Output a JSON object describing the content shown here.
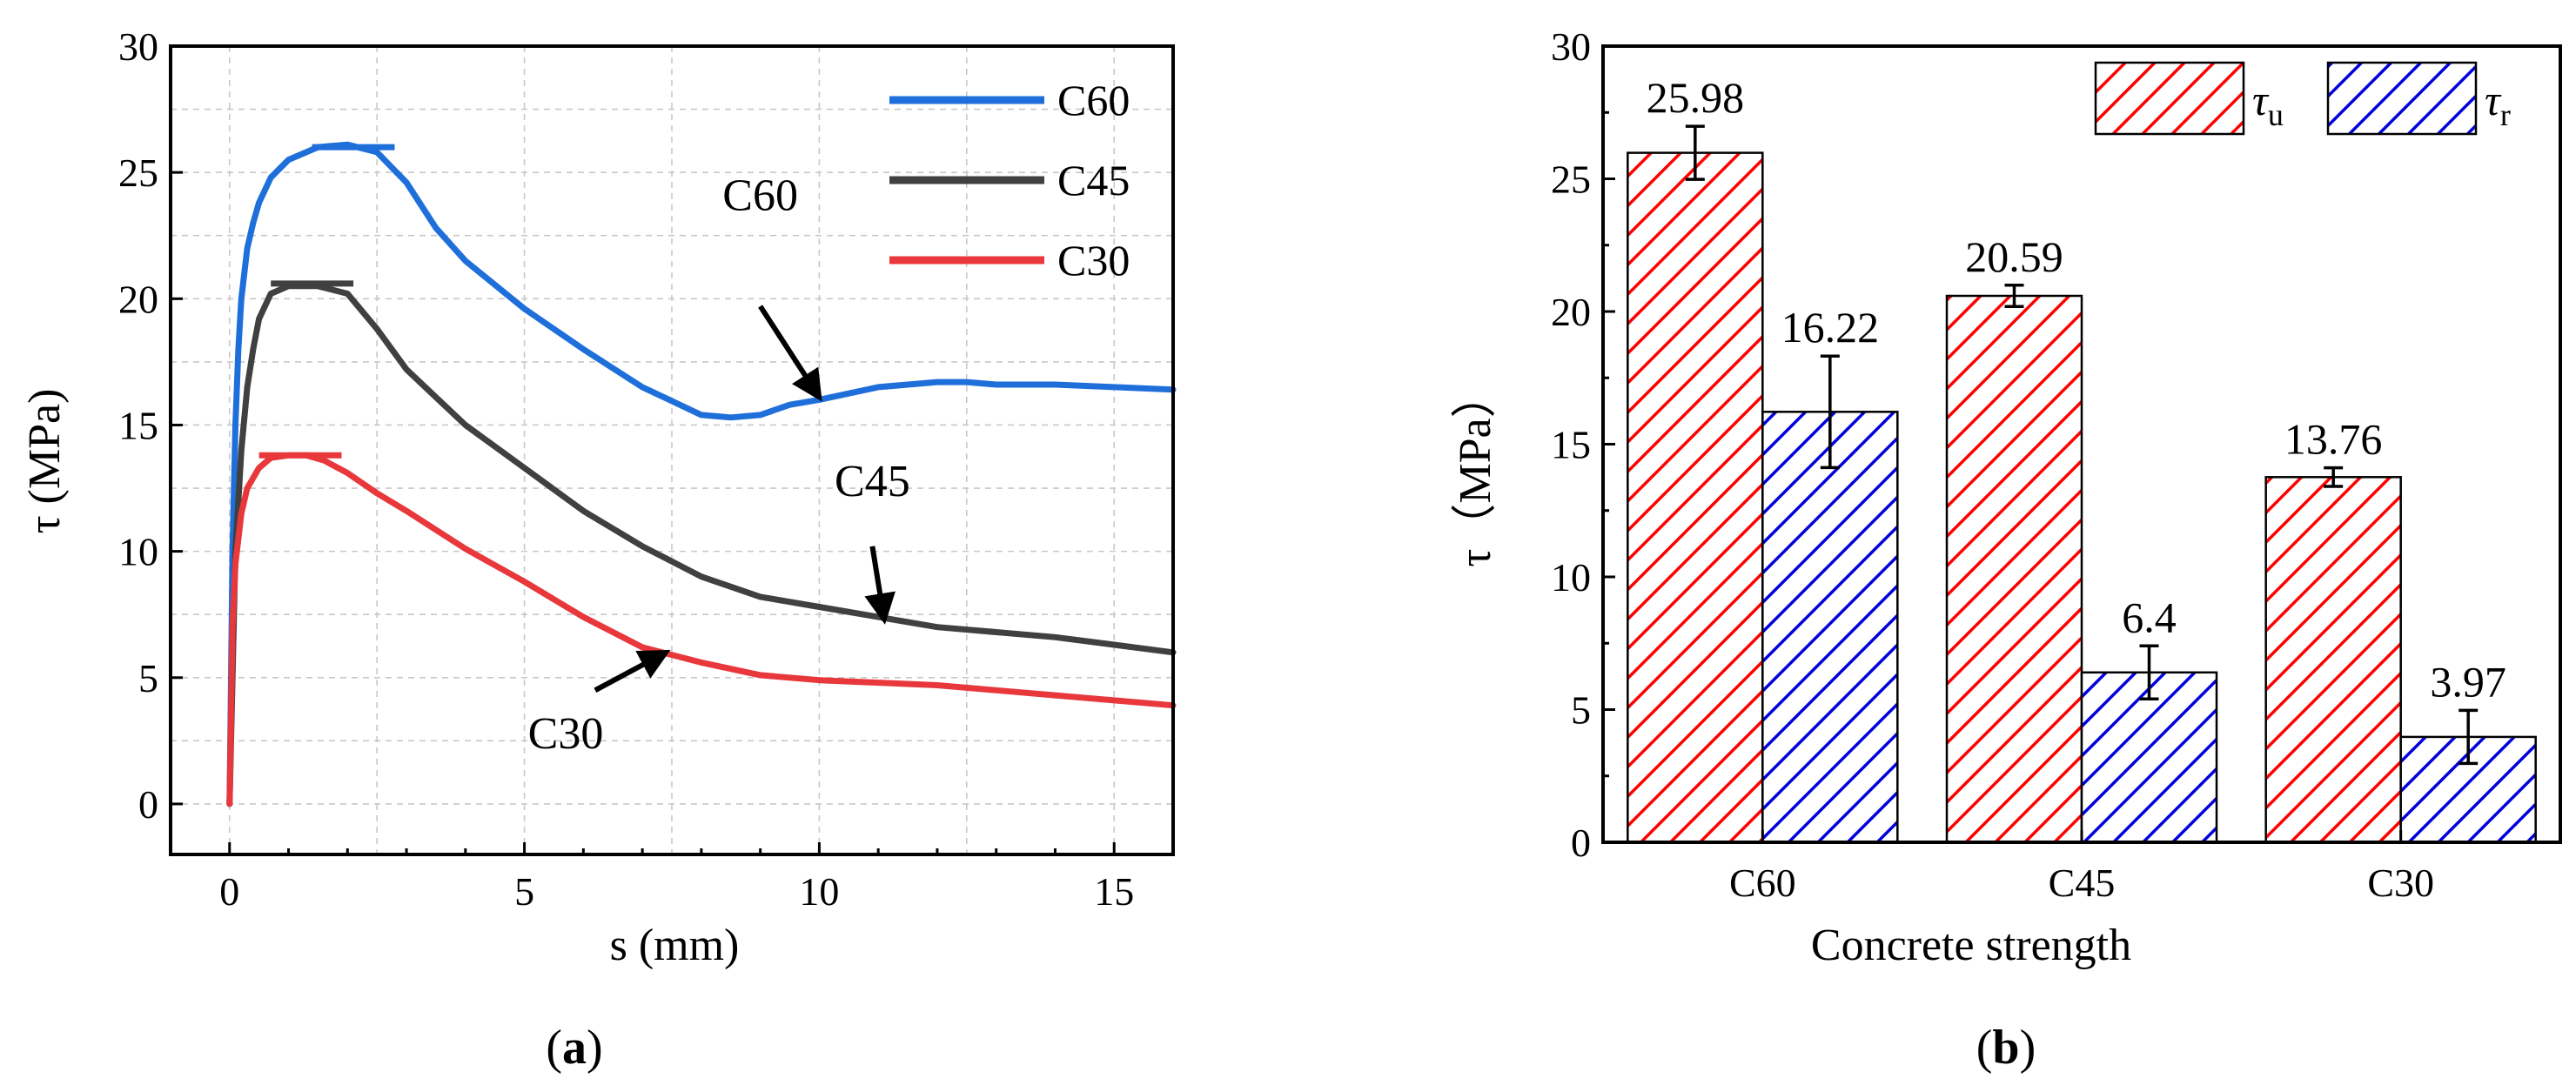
{
  "colors": {
    "C60": "#1f6fdb",
    "C45": "#404040",
    "C30": "#e8383c",
    "tau_u": "#ff0000",
    "tau_r": "#0000dd"
  },
  "chart_data": [
    {
      "type": "line",
      "panel_label_open": "(",
      "panel_label_letter": "a",
      "panel_label_close": ")",
      "title": "",
      "xlabel": "s (mm)",
      "ylabel": "τ (MPa)",
      "xlim": [
        -1,
        16
      ],
      "ylim": [
        -2,
        30
      ],
      "xticks": [
        0,
        5,
        10,
        15
      ],
      "yticks": [
        0,
        5,
        10,
        15,
        20,
        25,
        30
      ],
      "grid": true,
      "legend_position": "top-right",
      "series": [
        {
          "name": "C60",
          "color_key": "C60",
          "peak": 26.0,
          "peak_marker_x": [
            1.4,
            2.8
          ],
          "x": [
            0,
            0.05,
            0.1,
            0.15,
            0.2,
            0.3,
            0.4,
            0.5,
            0.7,
            1.0,
            1.5,
            2.0,
            2.5,
            3.0,
            3.5,
            4.0,
            5.0,
            6.0,
            7.0,
            8.0,
            8.5,
            9.0,
            9.5,
            10.0,
            11.0,
            12.0,
            12.5,
            13.0,
            14.0,
            15.0,
            16.0
          ],
          "y": [
            0,
            10,
            15,
            18,
            20,
            22,
            23,
            23.8,
            24.8,
            25.5,
            26.0,
            26.1,
            25.8,
            24.6,
            22.8,
            21.5,
            19.6,
            18.0,
            16.5,
            15.4,
            15.3,
            15.4,
            15.8,
            16.0,
            16.5,
            16.7,
            16.7,
            16.6,
            16.6,
            16.5,
            16.4
          ]
        },
        {
          "name": "C45",
          "color_key": "C45",
          "peak": 20.6,
          "peak_marker_x": [
            0.7,
            2.1
          ],
          "x": [
            0,
            0.1,
            0.2,
            0.3,
            0.4,
            0.5,
            0.7,
            1.0,
            1.5,
            2.0,
            2.5,
            3.0,
            4.0,
            5.0,
            6.0,
            7.0,
            8.0,
            9.0,
            10.0,
            11.0,
            12.0,
            13.0,
            14.0,
            15.0,
            16.0
          ],
          "y": [
            0,
            10,
            14,
            16.5,
            18,
            19.2,
            20.2,
            20.5,
            20.5,
            20.2,
            18.8,
            17.2,
            15.0,
            13.3,
            11.6,
            10.2,
            9.0,
            8.2,
            7.8,
            7.4,
            7.0,
            6.8,
            6.6,
            6.3,
            6.0
          ]
        },
        {
          "name": "C30",
          "color_key": "C30",
          "peak": 13.8,
          "peak_marker_x": [
            0.5,
            1.9
          ],
          "x": [
            0,
            0.05,
            0.1,
            0.2,
            0.3,
            0.5,
            0.7,
            1.0,
            1.3,
            1.6,
            2.0,
            2.5,
            3.0,
            4.0,
            5.0,
            6.0,
            7.0,
            8.0,
            9.0,
            10.0,
            11.0,
            12.0,
            13.0,
            14.0,
            15.0,
            16.0
          ],
          "y": [
            0,
            7,
            9.5,
            11.5,
            12.5,
            13.3,
            13.7,
            13.8,
            13.8,
            13.6,
            13.1,
            12.3,
            11.6,
            10.1,
            8.8,
            7.4,
            6.2,
            5.6,
            5.1,
            4.9,
            4.8,
            4.7,
            4.5,
            4.3,
            4.1,
            3.9
          ]
        }
      ],
      "annotations": [
        {
          "text": "C60",
          "text_x": 9.0,
          "text_y": 23.5,
          "arrow_from": [
            9.0,
            19.7
          ],
          "arrow_to": [
            10.0,
            16.1
          ]
        },
        {
          "text": "C45",
          "text_x": 10.9,
          "text_y": 12.2,
          "arrow_from": [
            10.9,
            10.2
          ],
          "arrow_to": [
            11.1,
            7.3
          ]
        },
        {
          "text": "C30",
          "text_x": 5.7,
          "text_y": 2.2,
          "arrow_from": [
            6.2,
            4.5
          ],
          "arrow_to": [
            7.4,
            6.0
          ]
        }
      ]
    },
    {
      "type": "bar",
      "panel_label_open": "(",
      "panel_label_letter": "b",
      "panel_label_close": ")",
      "title": "",
      "xlabel": "Concrete strength",
      "ylabel": "τ（MPa）",
      "ylim": [
        0,
        30
      ],
      "yticks": [
        0,
        5,
        10,
        15,
        20,
        25,
        30
      ],
      "grid": false,
      "legend_position": "top-right",
      "categories": [
        "C60",
        "C45",
        "C30"
      ],
      "series": [
        {
          "name_main": "τ",
          "name_sub": "u",
          "color_key": "tau_u",
          "hatch_color": "#ff0000",
          "values": [
            25.98,
            20.59,
            13.76
          ],
          "labels": [
            "25.98",
            "20.59",
            "13.76"
          ],
          "errors": [
            1.0,
            0.4,
            0.35
          ]
        },
        {
          "name_main": "τ",
          "name_sub": "r",
          "color_key": "tau_r",
          "hatch_color": "#0000dd",
          "values": [
            16.22,
            6.4,
            3.97
          ],
          "labels": [
            "16.22",
            "6.4",
            "3.97"
          ],
          "errors": [
            2.1,
            1.0,
            1.0
          ]
        }
      ]
    }
  ]
}
